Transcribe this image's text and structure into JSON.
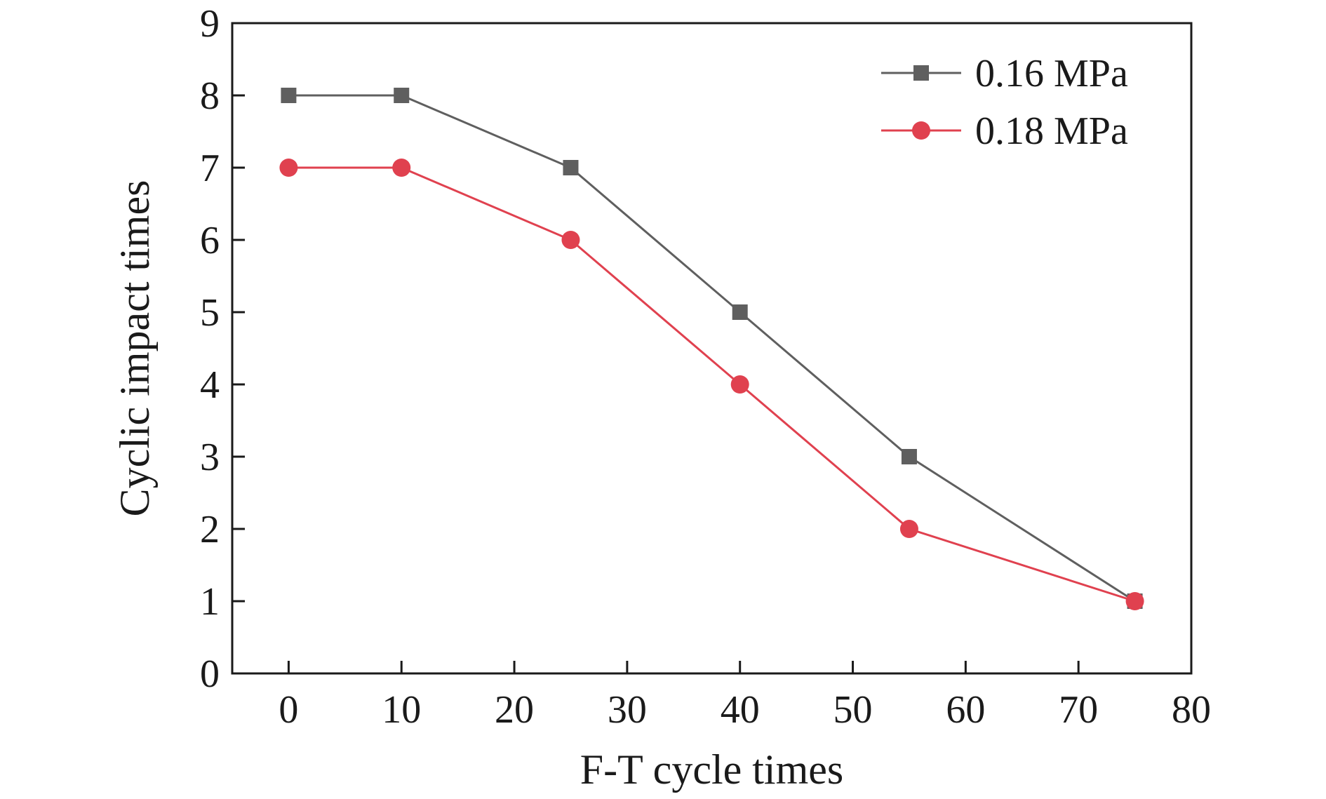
{
  "chart_data": {
    "type": "line",
    "title": "",
    "xlabel": "F-T cycle times",
    "ylabel": "Cyclic impact times",
    "xlim": [
      -5,
      80
    ],
    "ylim": [
      0,
      9
    ],
    "xticks": [
      0,
      10,
      20,
      30,
      40,
      50,
      60,
      70,
      80
    ],
    "yticks": [
      0,
      1,
      2,
      3,
      4,
      5,
      6,
      7,
      8,
      9
    ],
    "grid": false,
    "legend_position": "top-right",
    "series": [
      {
        "name": "0.16 MPa",
        "color": "#5f5f5f",
        "marker": "square",
        "x": [
          0,
          10,
          25,
          40,
          55,
          75
        ],
        "y": [
          8,
          8,
          7,
          5,
          3,
          1
        ]
      },
      {
        "name": "0.18 MPa",
        "color": "#e0414f",
        "marker": "circle",
        "x": [
          0,
          10,
          25,
          40,
          55,
          75
        ],
        "y": [
          7,
          7,
          6,
          4,
          2,
          1
        ]
      }
    ]
  }
}
